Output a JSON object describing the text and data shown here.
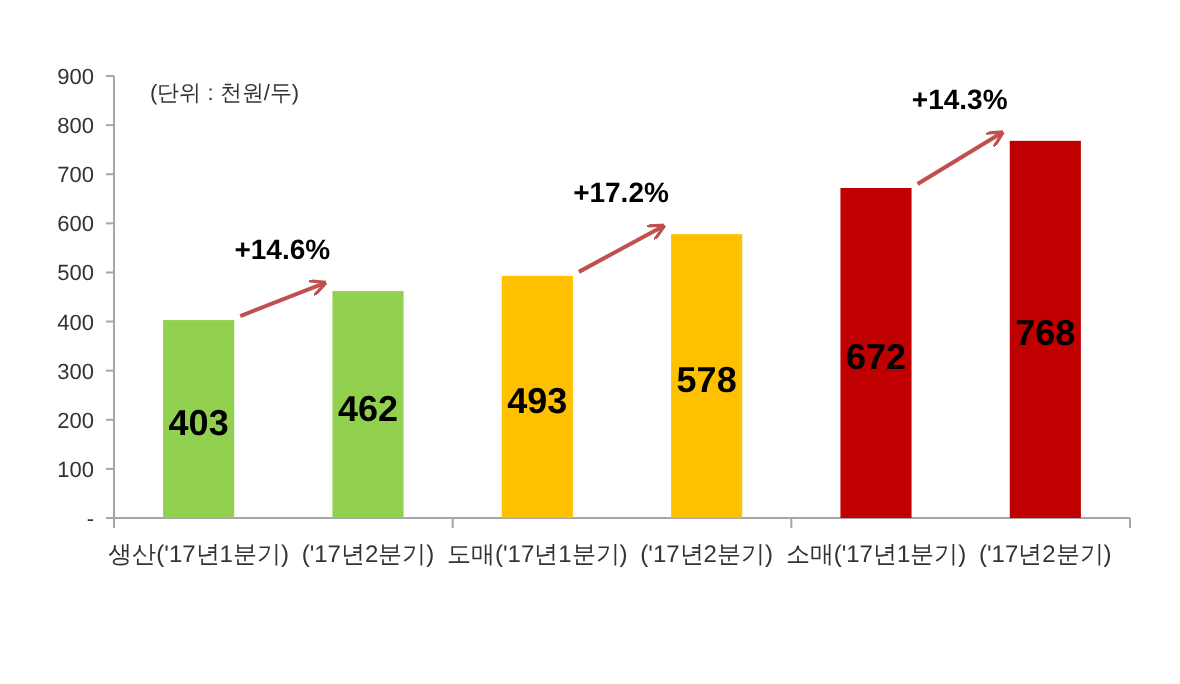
{
  "chart_data": {
    "type": "bar",
    "categories": [
      "생산('17년1분기)",
      "('17년2분기)",
      "도매('17년1분기)",
      "('17년2분기)",
      "소매('17년1분기)",
      "('17년2분기)"
    ],
    "values": [
      403,
      462,
      493,
      578,
      672,
      768
    ],
    "colors": [
      "#92d050",
      "#92d050",
      "#ffc000",
      "#ffc000",
      "#c00000",
      "#c00000"
    ],
    "ylim": [
      0,
      900
    ],
    "yticks": [
      {
        "value": 0,
        "label": "-"
      },
      100,
      200,
      300,
      400,
      500,
      600,
      700,
      800,
      900
    ],
    "data_labels": true,
    "grid": false,
    "annotations": [
      "(단위 : 천원/두)",
      "+14.6%",
      "+17.2%",
      "+14.3%"
    ]
  }
}
